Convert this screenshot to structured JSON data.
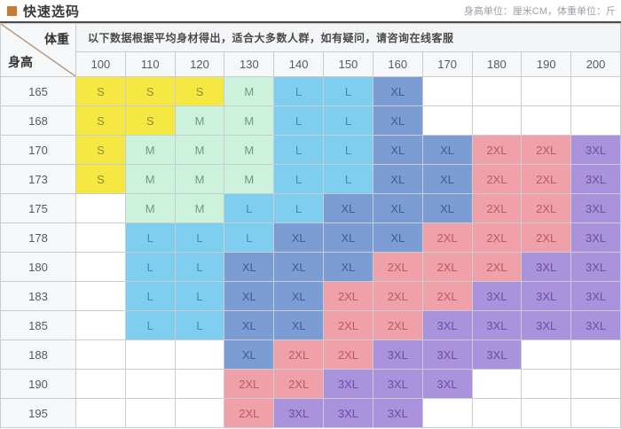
{
  "header": {
    "title": "快速选码",
    "unit_note": "身高单位：厘米CM，体重单位：斤"
  },
  "chart_data": {
    "type": "table",
    "title": "快速选码",
    "corner_top_label": "体重",
    "corner_bottom_label": "身高",
    "note": "以下数据根据平均身材得出，适合大多数人群，如有疑问，请咨询在线客服",
    "weight_columns": [
      "100",
      "110",
      "120",
      "130",
      "140",
      "150",
      "160",
      "170",
      "180",
      "190",
      "200"
    ],
    "height_rows": [
      "165",
      "168",
      "170",
      "173",
      "175",
      "178",
      "180",
      "183",
      "185",
      "188",
      "190",
      "195"
    ],
    "size_matrix": [
      [
        "S",
        "S",
        "S",
        "M",
        "L",
        "L",
        "XL",
        "",
        "",
        "",
        ""
      ],
      [
        "S",
        "S",
        "M",
        "M",
        "L",
        "L",
        "XL",
        "",
        "",
        "",
        ""
      ],
      [
        "S",
        "M",
        "M",
        "M",
        "L",
        "L",
        "XL",
        "XL",
        "2XL",
        "2XL",
        "3XL"
      ],
      [
        "S",
        "M",
        "M",
        "M",
        "L",
        "L",
        "XL",
        "XL",
        "2XL",
        "2XL",
        "3XL"
      ],
      [
        "",
        "M",
        "M",
        "L",
        "L",
        "XL",
        "XL",
        "XL",
        "2XL",
        "2XL",
        "3XL"
      ],
      [
        "",
        "L",
        "L",
        "L",
        "XL",
        "XL",
        "XL",
        "2XL",
        "2XL",
        "2XL",
        "3XL"
      ],
      [
        "",
        "L",
        "L",
        "XL",
        "XL",
        "XL",
        "2XL",
        "2XL",
        "2XL",
        "3XL",
        "3XL"
      ],
      [
        "",
        "L",
        "L",
        "XL",
        "XL",
        "2XL",
        "2XL",
        "2XL",
        "3XL",
        "3XL",
        "3XL"
      ],
      [
        "",
        "L",
        "L",
        "XL",
        "XL",
        "2XL",
        "2XL",
        "3XL",
        "3XL",
        "3XL",
        "3XL"
      ],
      [
        "",
        "",
        "",
        "XL",
        "2XL",
        "2XL",
        "3XL",
        "3XL",
        "3XL",
        "",
        ""
      ],
      [
        "",
        "",
        "",
        "2XL",
        "2XL",
        "3XL",
        "3XL",
        "3XL",
        "",
        "",
        ""
      ],
      [
        "",
        "",
        "",
        "2XL",
        "3XL",
        "3XL",
        "3XL",
        "",
        "",
        "",
        ""
      ]
    ]
  },
  "colors": {
    "accent_bullet": "#cc7a33",
    "diagonal_line": "#b9a18c",
    "size_colors": {
      "S": {
        "bg": "#f6e843",
        "fg": "#8f8f35"
      },
      "M": {
        "bg": "#cdf2dc",
        "fg": "#6f9b82"
      },
      "L": {
        "bg": "#7fcdef",
        "fg": "#3c8db4"
      },
      "XL": {
        "bg": "#7b9dd4",
        "fg": "#3a5d9e"
      },
      "2XL": {
        "bg": "#f0a0a8",
        "fg": "#bb5a66"
      },
      "3XL": {
        "bg": "#aa92dc",
        "fg": "#6c4fa8"
      }
    }
  }
}
